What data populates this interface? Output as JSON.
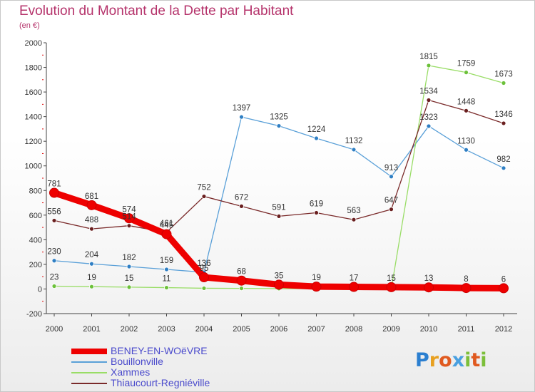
{
  "title": "Evolution du Montant de la Dette par Habitant",
  "subtitle": "(en €)",
  "logo": {
    "text": "Proxiti",
    "parts": [
      "P",
      "r",
      "o",
      "x",
      "i",
      "t",
      "i"
    ]
  },
  "chart_data": {
    "type": "line",
    "title": "Evolution du Montant de la Dette par Habitant",
    "ylabel": "(en €)",
    "x": [
      "2000",
      "2001",
      "2002",
      "2003",
      "2004",
      "2005",
      "2006",
      "2007",
      "2008",
      "2009",
      "2010",
      "2011",
      "2012"
    ],
    "ylim": [
      -200,
      2000
    ],
    "yticks": [
      -200,
      0,
      200,
      400,
      600,
      800,
      1000,
      1200,
      1400,
      1600,
      1800,
      2000
    ],
    "grid": false,
    "legend": "bottom-left",
    "series": [
      {
        "name": "Bouillonville",
        "color": "#5aa0d8",
        "markerColor": "#2f7fc4",
        "values": [
          230,
          204,
          182,
          159,
          136,
          1397,
          1325,
          1224,
          1132,
          913,
          1323,
          1130,
          982
        ]
      },
      {
        "name": "Xammes",
        "color": "#99dd66",
        "markerColor": "#6cc13a",
        "values": [
          23,
          19,
          15,
          11,
          6,
          5,
          3,
          2,
          1,
          0,
          1815,
          1759,
          1673
        ]
      },
      {
        "name": "Thiaucourt-Regniéville",
        "color": "#7a2a2a",
        "markerColor": "#6a1f1f",
        "values": [
          556,
          488,
          514,
          461,
          752,
          672,
          591,
          619,
          563,
          647,
          1534,
          1448,
          1346
        ]
      },
      {
        "name": "BENEY-EN-WOëVRE",
        "color": "#ee0000",
        "markerColor": "#ee0000",
        "thick": true,
        "values": [
          781,
          681,
          574,
          445,
          95,
          68,
          35,
          19,
          17,
          15,
          13,
          8,
          6
        ]
      }
    ],
    "labels": [
      {
        "series": 0,
        "text": [
          "230",
          "204",
          "182",
          "159",
          "136",
          "1397",
          "1325",
          "1224",
          "1132",
          "913",
          "1323",
          "1130",
          "982"
        ]
      },
      {
        "series": 1,
        "text": [
          "23",
          "19",
          "15",
          "11",
          "",
          "",
          "",
          "",
          "",
          "",
          "1815",
          "1759",
          "1673"
        ]
      },
      {
        "series": 2,
        "text": [
          "556",
          "488",
          "514",
          "461",
          "752",
          "672",
          "591",
          "619",
          "563",
          "647",
          "1534",
          "1448",
          "1346"
        ]
      },
      {
        "series": 3,
        "text": [
          "781",
          "681",
          "574",
          "445",
          "95",
          "68",
          "35",
          "19",
          "17",
          "15",
          "13",
          "8",
          "6"
        ]
      }
    ],
    "legend_order": [
      3,
      0,
      1,
      2
    ]
  }
}
